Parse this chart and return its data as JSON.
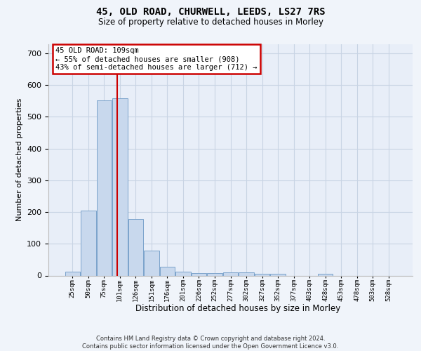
{
  "title": "45, OLD ROAD, CHURWELL, LEEDS, LS27 7RS",
  "subtitle": "Size of property relative to detached houses in Morley",
  "xlabel": "Distribution of detached houses by size in Morley",
  "ylabel": "Number of detached properties",
  "bar_color": "#c8d8ed",
  "bar_edge_color": "#7ba3cb",
  "grid_color": "#c8d4e4",
  "bg_color": "#f0f4fa",
  "plot_bg_color": "#e8eef8",
  "categories": [
    "25sqm",
    "50sqm",
    "75sqm",
    "101sqm",
    "126sqm",
    "151sqm",
    "176sqm",
    "201sqm",
    "226sqm",
    "252sqm",
    "277sqm",
    "302sqm",
    "327sqm",
    "352sqm",
    "377sqm",
    "403sqm",
    "428sqm",
    "453sqm",
    "478sqm",
    "503sqm",
    "528sqm"
  ],
  "values": [
    13,
    205,
    553,
    558,
    178,
    78,
    28,
    12,
    8,
    7,
    10,
    10,
    6,
    5,
    0,
    0,
    5,
    0,
    0,
    0,
    0
  ],
  "annotation_text": "45 OLD ROAD: 109sqm\n← 55% of detached houses are smaller (908)\n43% of semi-detached houses are larger (712) →",
  "annotation_box_facecolor": "#ffffff",
  "annotation_border_color": "#cc0000",
  "property_line_color": "#cc0000",
  "ylim": [
    0,
    730
  ],
  "yticks": [
    0,
    100,
    200,
    300,
    400,
    500,
    600,
    700
  ],
  "footer_text": "Contains HM Land Registry data © Crown copyright and database right 2024.\nContains public sector information licensed under the Open Government Licence v3.0.",
  "property_sqm": 109,
  "bin_edges": [
    25,
    50,
    75,
    101,
    126,
    151,
    176,
    201,
    226,
    252,
    277,
    302,
    327,
    352,
    377,
    403,
    428,
    453,
    478,
    503,
    528,
    553
  ]
}
